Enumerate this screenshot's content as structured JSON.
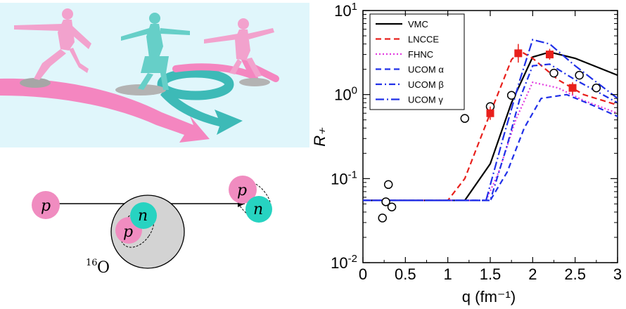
{
  "illustration": {
    "nucleon_labels": {
      "proton": "p",
      "neutron": "n"
    },
    "nucleus_label": {
      "mass_number": "16",
      "symbol": "O"
    },
    "colors": {
      "proton": "#f08cc0",
      "neutron": "#27d3c1",
      "nucleus": "#d3d3d3",
      "sky": "#e0f6fb",
      "pink_arrow": "#f486c0",
      "teal_arrow": "#3dbab7"
    },
    "icons": [
      "pink-skater-icon",
      "teal-skater-icon",
      "pink-arrow-icon",
      "teal-arrow-icon"
    ]
  },
  "chart_data": {
    "type": "line",
    "xlabel": "q (fm⁻¹)",
    "ylabel": "R₊",
    "xlim": [
      0,
      3
    ],
    "ylim": [
      0.01,
      10
    ],
    "yscale": "log",
    "x_ticks": [
      0,
      0.5,
      1,
      1.5,
      2,
      2.5,
      3
    ],
    "x_tick_labels": [
      "0",
      "0.5",
      "1",
      "1.5",
      "2",
      "2.5",
      "3"
    ],
    "y_ticks": [
      0.01,
      0.1,
      1,
      10
    ],
    "y_tick_labels": [
      {
        "base": "10",
        "exp": "-2"
      },
      {
        "base": "10",
        "exp": "-1"
      },
      {
        "base": "10",
        "exp": "0"
      },
      {
        "base": "10",
        "exp": "1"
      }
    ],
    "legend_position": "top-left",
    "series": [
      {
        "name": "VMC",
        "color": "#000000",
        "dash": "solid",
        "x": [
          0,
          1.2,
          1.5,
          1.75,
          2.0,
          2.2,
          2.5,
          3.0
        ],
        "y": [
          0.055,
          0.055,
          0.15,
          0.8,
          2.8,
          3.2,
          2.7,
          1.7
        ]
      },
      {
        "name": "LNCCE",
        "color": "#e8201c",
        "dash": "dashed",
        "x": [
          0,
          1.0,
          1.2,
          1.5,
          1.75,
          1.85,
          2.0,
          2.3,
          2.6,
          3.0
        ],
        "y": [
          0.055,
          0.055,
          0.1,
          0.6,
          2.6,
          3.3,
          2.7,
          1.5,
          1.0,
          0.75
        ]
      },
      {
        "name": "FHNC",
        "color": "#e23ce0",
        "dash": "dotted",
        "x": [
          0,
          1.45,
          1.6,
          1.8,
          2.0,
          2.3,
          2.6,
          3.0
        ],
        "y": [
          0.055,
          0.055,
          0.12,
          0.5,
          1.4,
          1.2,
          0.85,
          0.6
        ]
      },
      {
        "name": "UCOM α",
        "color": "#2030e8",
        "dash": "dashed",
        "x": [
          0,
          1.5,
          1.7,
          1.9,
          2.1,
          2.4,
          2.7,
          3.0
        ],
        "y": [
          0.055,
          0.055,
          0.12,
          0.4,
          0.9,
          1.0,
          0.75,
          0.55
        ]
      },
      {
        "name": "UCOM β",
        "color": "#2030e8",
        "dash": "dashdot",
        "x": [
          0,
          1.5,
          1.7,
          1.85,
          2.0,
          2.2,
          2.5,
          3.0
        ],
        "y": [
          0.055,
          0.055,
          0.25,
          0.9,
          2.2,
          2.3,
          1.5,
          0.8
        ]
      },
      {
        "name": "UCOM γ",
        "color": "#2030e8",
        "dash": "dashdotlong",
        "x": [
          0,
          1.45,
          1.65,
          1.85,
          2.0,
          2.2,
          2.5,
          3.0
        ],
        "y": [
          0.055,
          0.055,
          0.3,
          1.5,
          4.5,
          4.0,
          2.2,
          0.9
        ]
      }
    ],
    "markers": [
      {
        "name": "open circles",
        "shape": "circle-open",
        "color": "#000000",
        "points": [
          {
            "x": 0.23,
            "y": 0.034
          },
          {
            "x": 0.27,
            "y": 0.053
          },
          {
            "x": 0.3,
            "y": 0.085,
            "xerr": 0.05
          },
          {
            "x": 0.34,
            "y": 0.046
          },
          {
            "x": 1.2,
            "y": 0.52
          },
          {
            "x": 1.5,
            "y": 0.72
          },
          {
            "x": 1.75,
            "y": 0.98
          },
          {
            "x": 2.25,
            "y": 1.8
          },
          {
            "x": 2.55,
            "y": 1.7
          },
          {
            "x": 2.75,
            "y": 1.2
          }
        ]
      },
      {
        "name": "filled squares",
        "shape": "square-filled",
        "color": "#e8201c",
        "points": [
          {
            "x": 1.5,
            "y": 0.6,
            "yerr_low": 0.5,
            "yerr_high": 0.72
          },
          {
            "x": 1.83,
            "y": 3.1,
            "yerr_low": 2.4,
            "yerr_high": 4.0
          },
          {
            "x": 2.2,
            "y": 3.0,
            "yerr_low": 2.6,
            "yerr_high": 3.5
          },
          {
            "x": 2.47,
            "y": 1.2,
            "yerr_low": 1.0,
            "yerr_high": 1.4
          }
        ]
      }
    ]
  }
}
